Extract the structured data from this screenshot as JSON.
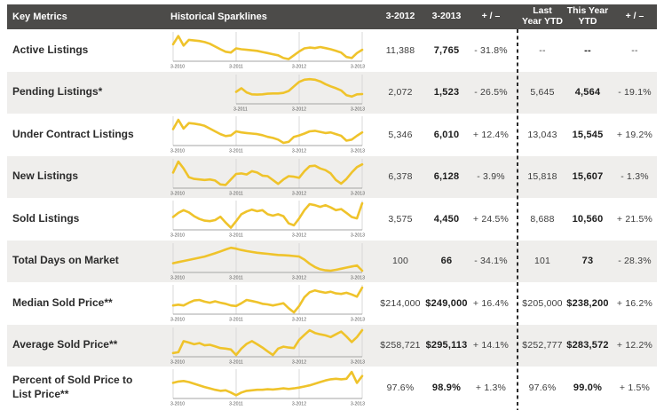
{
  "colors": {
    "accent_gold": "#EFC32B",
    "header_bg": "#4C4B49",
    "alt_row_bg": "#EFEEEC",
    "grid_line": "#D8D8D8",
    "axis_line": "#A5A5A5",
    "axis_label": "#555555",
    "separator": "#2A2A2A"
  },
  "chart_data": {
    "type": "table",
    "title": "Key Metrics",
    "columns": [
      "Key Metrics",
      "Historical Sparklines",
      "3-2012",
      "3-2013",
      "+ / –",
      "Last Year YTD",
      "This Year YTD",
      "+ / –"
    ],
    "header": {
      "metrics": "Key Metrics",
      "sparklines": "Historical Sparklines",
      "m2012": "3-2012",
      "m2013": "3-2013",
      "change1": "+ / –",
      "last_ytd": "Last Year YTD",
      "this_ytd": "This Year YTD",
      "change2": "+ / –"
    },
    "rows": [
      {
        "label": "Active Listings",
        "values": [
          "11,388",
          "7,765",
          "- 31.8%",
          "--",
          "--",
          "--"
        ],
        "sparkline": {
          "type": "line",
          "x_labels": [
            "3-2010",
            "3-2011",
            "3-2012",
            "3-2013"
          ],
          "start_frac": 0,
          "points": [
            0.6,
            0.9,
            0.55,
            0.76,
            0.74,
            0.72,
            0.68,
            0.62,
            0.52,
            0.42,
            0.33,
            0.3,
            0.45,
            0.42,
            0.4,
            0.38,
            0.36,
            0.32,
            0.28,
            0.24,
            0.2,
            0.1,
            0.06,
            0.2,
            0.34,
            0.45,
            0.48,
            0.46,
            0.5,
            0.46,
            0.42,
            0.36,
            0.3,
            0.14,
            0.1,
            0.28,
            0.4
          ]
        }
      },
      {
        "label": "Pending Listings*",
        "values": [
          "2,072",
          "1,523",
          "- 26.5%",
          "5,645",
          "4,564",
          "- 19.1%"
        ],
        "sparkline": {
          "type": "line",
          "x_labels": [
            "3-2011",
            "3-2012",
            "3-2013"
          ],
          "start_frac": 0.3333,
          "points": [
            0.42,
            0.55,
            0.4,
            0.33,
            0.32,
            0.33,
            0.35,
            0.36,
            0.36,
            0.38,
            0.45,
            0.62,
            0.78,
            0.86,
            0.88,
            0.86,
            0.8,
            0.7,
            0.62,
            0.55,
            0.47,
            0.3,
            0.25,
            0.33,
            0.34
          ]
        }
      },
      {
        "label": "Under Contract Listings",
        "values": [
          "5,346",
          "6,010",
          "+ 12.4%",
          "13,043",
          "15,545",
          "+ 19.2%"
        ],
        "sparkline": {
          "type": "line",
          "x_labels": [
            "3-2010",
            "3-2011",
            "3-2012",
            "3-2013"
          ],
          "start_frac": 0,
          "points": [
            0.58,
            0.92,
            0.6,
            0.8,
            0.78,
            0.75,
            0.7,
            0.6,
            0.5,
            0.4,
            0.33,
            0.35,
            0.5,
            0.46,
            0.44,
            0.42,
            0.4,
            0.36,
            0.3,
            0.26,
            0.2,
            0.08,
            0.12,
            0.3,
            0.35,
            0.42,
            0.5,
            0.52,
            0.48,
            0.44,
            0.46,
            0.4,
            0.34,
            0.16,
            0.2,
            0.34,
            0.46
          ]
        }
      },
      {
        "label": "New Listings",
        "values": [
          "6,378",
          "6,128",
          "- 3.9%",
          "15,818",
          "15,607",
          "- 1.3%"
        ],
        "sparkline": {
          "type": "line",
          "x_labels": [
            "3-2010",
            "3-2011",
            "3-2012",
            "3-2013"
          ],
          "start_frac": 0,
          "points": [
            0.55,
            0.95,
            0.7,
            0.38,
            0.32,
            0.3,
            0.28,
            0.3,
            0.26,
            0.12,
            0.1,
            0.3,
            0.5,
            0.52,
            0.48,
            0.6,
            0.55,
            0.44,
            0.42,
            0.28,
            0.14,
            0.3,
            0.42,
            0.4,
            0.36,
            0.6,
            0.78,
            0.8,
            0.7,
            0.64,
            0.52,
            0.28,
            0.15,
            0.32,
            0.55,
            0.75,
            0.85
          ]
        }
      },
      {
        "label": "Sold Listings",
        "values": [
          "3,575",
          "4,450",
          "+ 24.5%",
          "8,688",
          "10,560",
          "+ 21.5%"
        ],
        "sparkline": {
          "type": "line",
          "x_labels": [
            "3-2010",
            "3-2011",
            "3-2012",
            "3-2013"
          ],
          "start_frac": 0,
          "points": [
            0.45,
            0.6,
            0.7,
            0.62,
            0.48,
            0.38,
            0.32,
            0.3,
            0.34,
            0.46,
            0.25,
            0.06,
            0.3,
            0.55,
            0.65,
            0.72,
            0.66,
            0.7,
            0.55,
            0.5,
            0.55,
            0.48,
            0.22,
            0.15,
            0.4,
            0.7,
            0.92,
            0.88,
            0.82,
            0.88,
            0.8,
            0.7,
            0.74,
            0.6,
            0.45,
            0.4,
            0.95
          ]
        }
      },
      {
        "label": "Total Days on Market",
        "values": [
          "100",
          "66",
          "- 34.1%",
          "101",
          "73",
          "- 28.3%"
        ],
        "sparkline": {
          "type": "line",
          "x_labels": [
            "3-2010",
            "3-2011",
            "3-2012",
            "3-2013"
          ],
          "start_frac": 0,
          "points": [
            0.32,
            0.36,
            0.4,
            0.44,
            0.48,
            0.52,
            0.56,
            0.62,
            0.68,
            0.75,
            0.82,
            0.88,
            0.85,
            0.8,
            0.76,
            0.73,
            0.7,
            0.68,
            0.66,
            0.64,
            0.62,
            0.61,
            0.6,
            0.58,
            0.56,
            0.45,
            0.3,
            0.18,
            0.1,
            0.06,
            0.05,
            0.08,
            0.12,
            0.16,
            0.2,
            0.24,
            0.05
          ]
        }
      },
      {
        "label": "Median Sold Price**",
        "values": [
          "$214,000",
          "$249,000",
          "+ 16.4%",
          "$205,000",
          "$238,200",
          "+ 16.2%"
        ],
        "sparkline": {
          "type": "line",
          "x_labels": [
            "3-2010",
            "3-2011",
            "3-2012",
            "3-2013"
          ],
          "start_frac": 0,
          "points": [
            0.3,
            0.33,
            0.3,
            0.4,
            0.48,
            0.5,
            0.44,
            0.4,
            0.45,
            0.4,
            0.36,
            0.3,
            0.28,
            0.38,
            0.5,
            0.46,
            0.42,
            0.36,
            0.34,
            0.3,
            0.34,
            0.38,
            0.2,
            0.05,
            0.28,
            0.6,
            0.78,
            0.85,
            0.8,
            0.76,
            0.8,
            0.74,
            0.72,
            0.76,
            0.7,
            0.62,
            0.95
          ]
        }
      },
      {
        "label": "Average Sold Price**",
        "values": [
          "$258,721",
          "$295,113",
          "+ 14.1%",
          "$252,777",
          "$283,572",
          "+ 12.2%"
        ],
        "sparkline": {
          "type": "line",
          "x_labels": [
            "3-2010",
            "3-2011",
            "3-2012",
            "3-2013"
          ],
          "start_frac": 0,
          "points": [
            0.12,
            0.15,
            0.55,
            0.5,
            0.44,
            0.48,
            0.4,
            0.42,
            0.36,
            0.3,
            0.28,
            0.25,
            0.05,
            0.28,
            0.45,
            0.55,
            0.44,
            0.32,
            0.18,
            0.05,
            0.28,
            0.35,
            0.32,
            0.3,
            0.6,
            0.78,
            0.95,
            0.85,
            0.8,
            0.76,
            0.7,
            0.8,
            0.9,
            0.72,
            0.52,
            0.7,
            0.95
          ]
        }
      },
      {
        "label": "Percent of Sold Price to List Price**",
        "values": [
          "97.6%",
          "98.9%",
          "+ 1.3%",
          "97.6%",
          "99.0%",
          "+ 1.5%"
        ],
        "sparkline": {
          "type": "line",
          "x_labels": [
            "3-2010",
            "3-2011",
            "3-2012",
            "3-2013"
          ],
          "start_frac": 0,
          "points": [
            0.55,
            0.6,
            0.62,
            0.58,
            0.52,
            0.46,
            0.4,
            0.35,
            0.3,
            0.26,
            0.28,
            0.2,
            0.1,
            0.2,
            0.26,
            0.28,
            0.3,
            0.3,
            0.32,
            0.31,
            0.33,
            0.35,
            0.33,
            0.35,
            0.38,
            0.42,
            0.46,
            0.52,
            0.58,
            0.64,
            0.68,
            0.7,
            0.68,
            0.7,
            0.95,
            0.55,
            0.8
          ]
        }
      }
    ]
  }
}
